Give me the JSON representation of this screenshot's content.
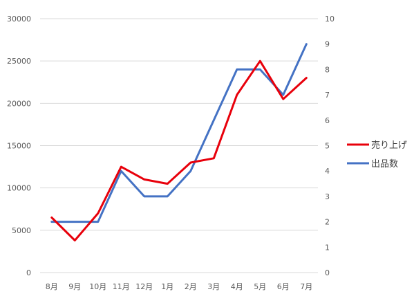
{
  "chart_data": {
    "type": "line",
    "title": "",
    "xlabel": "",
    "ylabel": "",
    "categories": [
      "8月",
      "9月",
      "10月",
      "11月",
      "12月",
      "1月",
      "2月",
      "3月",
      "4月",
      "5月",
      "6月",
      "7月"
    ],
    "y_left": {
      "min": 0,
      "max": 30000,
      "ticks": [
        "0",
        "5000",
        "10000",
        "15000",
        "20000",
        "25000",
        "30000"
      ]
    },
    "y_right": {
      "min": 0,
      "max": 10,
      "ticks": [
        "0",
        "1",
        "2",
        "3",
        "4",
        "5",
        "6",
        "7",
        "8",
        "9",
        "10"
      ]
    },
    "grid": true,
    "legend_position": "right",
    "series": [
      {
        "name": "売り上げ",
        "axis": "left",
        "color": "#E8000B",
        "values": [
          6500,
          3800,
          7000,
          12500,
          11000,
          10500,
          13000,
          13500,
          21000,
          25000,
          20500,
          23000
        ]
      },
      {
        "name": "出品数",
        "axis": "right",
        "color": "#4472C4",
        "values": [
          2,
          2,
          2,
          4,
          3,
          3,
          4,
          6,
          8,
          8,
          7,
          9
        ]
      }
    ]
  }
}
